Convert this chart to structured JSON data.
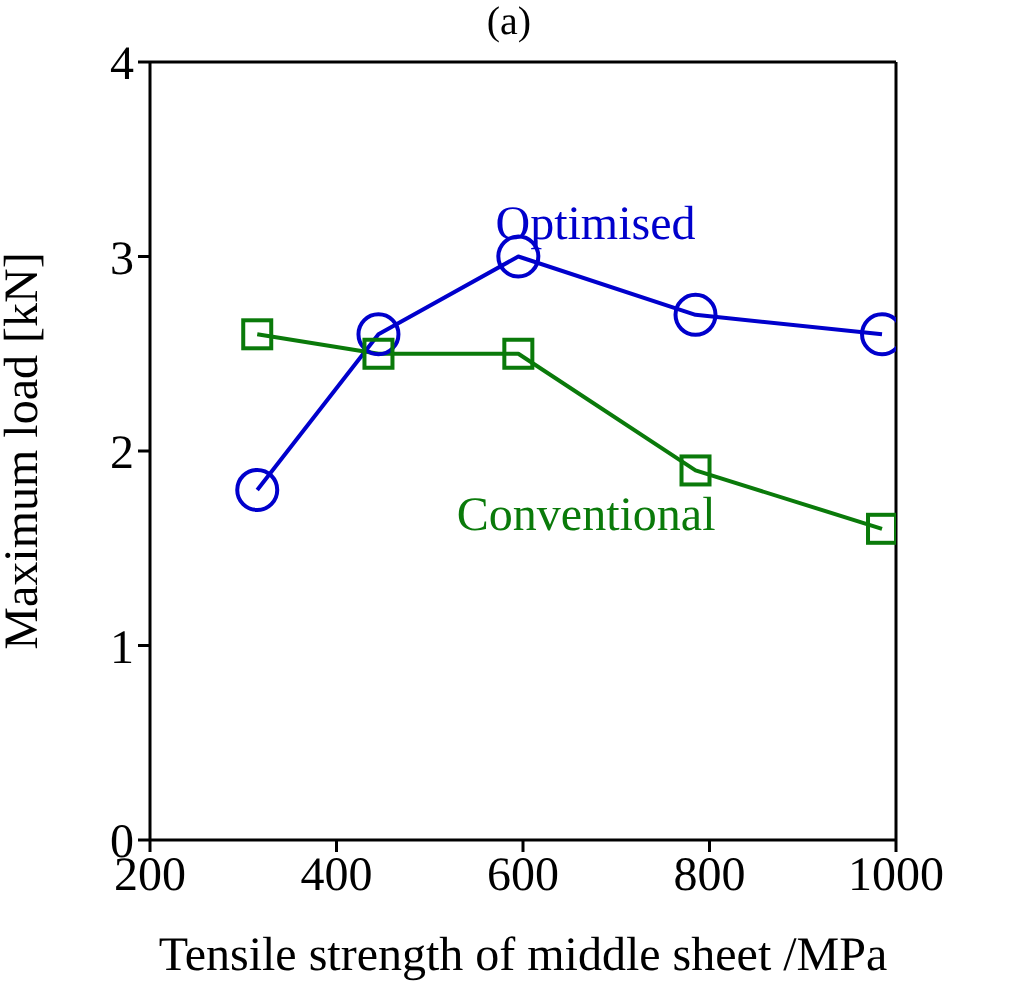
{
  "chart_data": {
    "type": "line",
    "title": "(a)",
    "xlabel": "Tensile strength of middle sheet /MPa",
    "ylabel": "Maximum load [kN]",
    "xlim": [
      200,
      1000
    ],
    "xticks": [
      200,
      400,
      600,
      800,
      1000
    ],
    "ylim": [
      0,
      4
    ],
    "yticks": [
      0,
      1,
      2,
      3,
      4
    ],
    "legend": false,
    "series": [
      {
        "name": "Optimised",
        "color": "#0000cc",
        "marker": "circle",
        "x": [
          315,
          445,
          595,
          785,
          985
        ],
        "values": [
          1.8,
          2.6,
          3.0,
          2.7,
          2.6
        ]
      },
      {
        "name": "Conventional",
        "color": "#0a7a0a",
        "marker": "square",
        "x": [
          315,
          445,
          595,
          785,
          985
        ],
        "values": [
          2.6,
          2.5,
          2.5,
          1.9,
          1.6
        ]
      }
    ]
  }
}
